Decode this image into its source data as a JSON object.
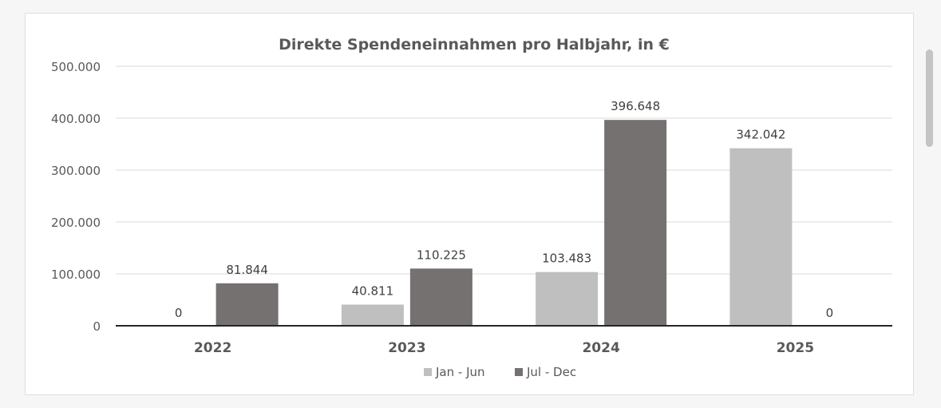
{
  "chart_data": {
    "type": "bar",
    "title": "Direkte Spendeneinnahmen pro Halbjahr, in €",
    "categories": [
      "2022",
      "2023",
      "2024",
      "2025"
    ],
    "series": [
      {
        "name": "Jan - Jun",
        "values": [
          0,
          40811,
          103483,
          342042
        ],
        "labels": [
          "0",
          "40.811",
          "103.483",
          "342.042"
        ],
        "color": "#bfbfbf"
      },
      {
        "name": "Jul - Dec",
        "values": [
          81844,
          110225,
          396648,
          0
        ],
        "labels": [
          "81.844",
          "110.225",
          "396.648",
          "0"
        ],
        "color": "#767171"
      }
    ],
    "ylim": [
      0,
      500000
    ],
    "yticks": [
      {
        "value": 0,
        "label": "0"
      },
      {
        "value": 100000,
        "label": "100.000"
      },
      {
        "value": 200000,
        "label": "200.000"
      },
      {
        "value": 300000,
        "label": "300.000"
      },
      {
        "value": 400000,
        "label": "400.000"
      },
      {
        "value": 500000,
        "label": "500.000"
      }
    ],
    "xlabel": "",
    "ylabel": "",
    "grid": true,
    "legend_position": "bottom"
  },
  "colors": {
    "text": "#595959",
    "title": "#595959",
    "grid": "#d9d9d9",
    "axis": "#262626"
  }
}
